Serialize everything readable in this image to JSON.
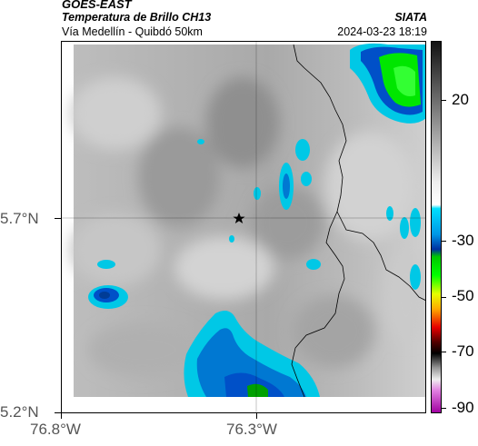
{
  "header": {
    "satellite": "GOES-EAST",
    "product": "Temperatura de Brillo CH13",
    "location": "Vía Medellín - Quibdó 50km",
    "organization": "SIATA",
    "datetime": "2024-03-23 18:19"
  },
  "map": {
    "lat_ticks": [
      "5.7°N",
      "5.2°N"
    ],
    "lon_ticks": [
      "76.8°W",
      "76.3°W"
    ],
    "marker_icon": "star-icon"
  },
  "colorbar": {
    "labels": [
      "20",
      "-30",
      "-50",
      "-70",
      "-90"
    ],
    "colors": {
      "warm": "#2a2a2a",
      "mid": "#c8c8c8",
      "cyan": "#00c8e6",
      "blue": "#0050c8",
      "green": "#00e600",
      "yellow": "#e6e600",
      "red": "#e60000",
      "black": "#000000",
      "magenta": "#c800c8"
    }
  }
}
